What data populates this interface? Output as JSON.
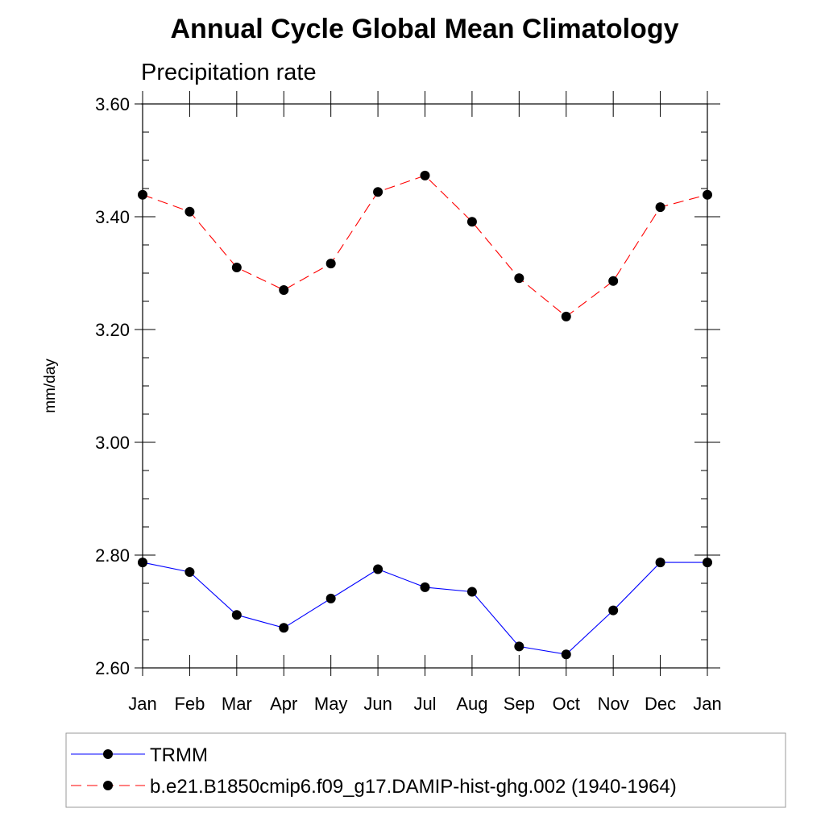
{
  "chart_data": {
    "type": "line",
    "title": "Annual Cycle Global Mean Climatology",
    "subtitle": "Precipitation rate",
    "xlabel": "",
    "ylabel": "mm/day",
    "ylim": [
      2.6,
      3.6
    ],
    "yticks": [
      "2.60",
      "2.80",
      "3.00",
      "3.20",
      "3.40",
      "3.60"
    ],
    "categories": [
      "Jan",
      "Feb",
      "Mar",
      "Apr",
      "May",
      "Jun",
      "Jul",
      "Aug",
      "Sep",
      "Oct",
      "Nov",
      "Dec",
      "Jan"
    ],
    "grid": false,
    "legend_position": "bottom",
    "series": [
      {
        "name": "TRMM",
        "color": "#0000ff",
        "line_style": "solid",
        "marker": "circle",
        "values": [
          2.787,
          2.77,
          2.694,
          2.671,
          2.723,
          2.775,
          2.743,
          2.735,
          2.638,
          2.624,
          2.702,
          2.787,
          2.787
        ]
      },
      {
        "name": "b.e21.B1850cmip6.f09_g17.DAMIP-hist-ghg.002 (1940-1964)",
        "color": "#ff0000",
        "line_style": "dashed",
        "marker": "circle",
        "values": [
          3.439,
          3.409,
          3.31,
          3.27,
          3.317,
          3.444,
          3.473,
          3.391,
          3.291,
          3.223,
          3.286,
          3.417,
          3.439
        ]
      }
    ]
  }
}
